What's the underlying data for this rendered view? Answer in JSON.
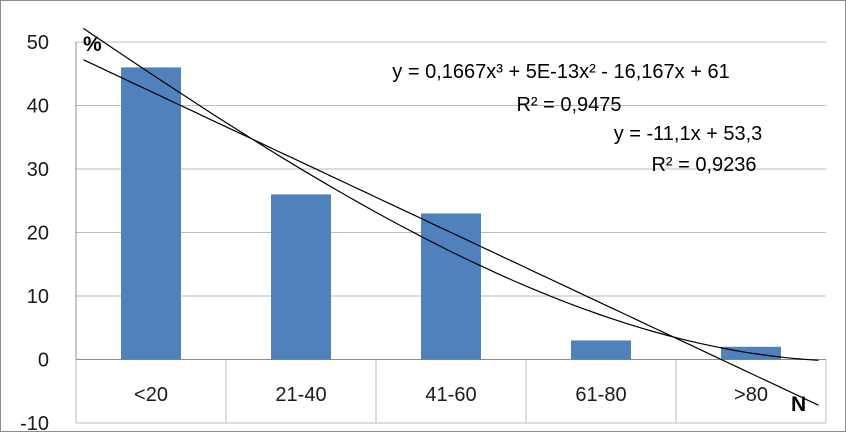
{
  "chart_data": {
    "type": "bar",
    "categories": [
      "<20",
      "21-40",
      "41-60",
      "61-80",
      ">80"
    ],
    "values": [
      46,
      26,
      23,
      3,
      2
    ],
    "ylim": [
      -10,
      50
    ],
    "yticks": [
      "-10",
      "0",
      "10",
      "20",
      "30",
      "40",
      "50"
    ],
    "ylabel": "%",
    "xlabel": "N",
    "grid": true,
    "bar_color": "#4f81bd",
    "trendlines": [
      {
        "type": "polynomial",
        "equation": "y = 0,1667x³ + 5E-13x² - 16,167x + 61",
        "r2": "R² = 0,9475",
        "coefficients": [
          0.1667,
          0,
          -16.167,
          61
        ]
      },
      {
        "type": "linear",
        "equation": "y = -11,1x + 53,3",
        "r2": "R² = 0,9236",
        "coefficients": [
          -11.1,
          53.3
        ]
      }
    ]
  }
}
